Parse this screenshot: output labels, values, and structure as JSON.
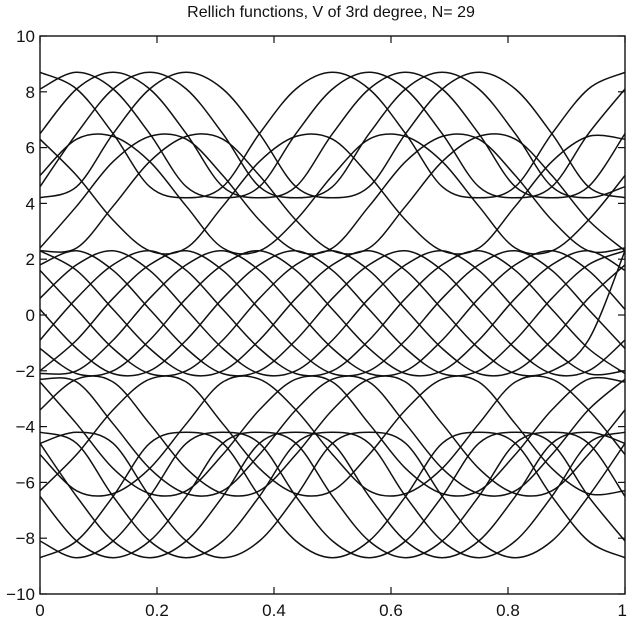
{
  "chart_data": {
    "type": "line",
    "title": "Rellich functions, V of 3rd degree,  N= 29",
    "xlabel": "",
    "ylabel": "",
    "xlim": [
      0,
      1
    ],
    "ylim": [
      -10,
      10
    ],
    "xticks": [
      0,
      0.2,
      0.4,
      0.6,
      0.8,
      1
    ],
    "xtick_labels": [
      "0",
      "0.2",
      "0.4",
      "0.6",
      "0.8",
      "1"
    ],
    "yticks": [
      -10,
      -8,
      -6,
      -4,
      -2,
      0,
      2,
      4,
      6,
      8,
      10
    ],
    "ytick_labels": [
      "−10",
      "−8",
      "−6",
      "−4",
      "−2",
      "0",
      "2",
      "4",
      "6",
      "8",
      "10"
    ],
    "grid": false,
    "line_color": "#111111",
    "num_series": 29,
    "x": [
      0,
      0.0625,
      0.125,
      0.1875,
      0.25,
      0.3125,
      0.375,
      0.4375,
      0.5,
      0.5625,
      0.625,
      0.6875,
      0.75,
      0.8125,
      0.875,
      0.9375,
      1
    ],
    "series": [
      {
        "values": [
          8.7,
          8.1,
          6.5,
          4.6,
          4.2,
          4.6,
          6.5,
          8.1,
          8.7,
          8.1,
          6.5,
          4.6,
          4.2,
          4.6,
          6.5,
          8.1,
          8.7
        ]
      },
      {
        "values": [
          8.1,
          8.7,
          8.1,
          6.5,
          4.6,
          4.2,
          4.6,
          6.5,
          8.1,
          8.7,
          8.1,
          6.5,
          4.6,
          4.2,
          4.6,
          6.5,
          8.1
        ]
      },
      {
        "values": [
          6.5,
          8.1,
          8.7,
          8.1,
          6.5,
          4.6,
          4.2,
          4.6,
          6.5,
          8.1,
          8.7,
          8.1,
          6.5,
          4.6,
          4.2,
          4.6,
          6.5
        ]
      },
      {
        "values": [
          4.6,
          6.5,
          8.1,
          8.7,
          8.1,
          6.5,
          4.6,
          4.2,
          4.6,
          6.5,
          8.1,
          8.7,
          8.1,
          6.5,
          4.6,
          4.2,
          4.6
        ]
      },
      {
        "values": [
          4.2,
          4.6,
          6.5,
          8.1,
          8.7,
          8.1,
          6.5,
          4.6,
          4.2,
          4.6,
          6.5,
          8.1,
          8.7,
          8.1,
          6.5,
          4.6,
          4.2
        ]
      },
      {
        "values": [
          6.3,
          5.0,
          3.4,
          2.3,
          2.4,
          3.9,
          5.5,
          6.4,
          6.3,
          5.0,
          3.4,
          2.3,
          2.4,
          3.9,
          5.5,
          6.4,
          6.3
        ]
      },
      {
        "values": [
          2.4,
          3.9,
          5.5,
          6.4,
          6.3,
          5.0,
          3.4,
          2.3,
          2.4,
          3.9,
          5.5,
          6.4,
          6.3,
          5.0,
          3.4,
          2.3,
          2.4
        ]
      },
      {
        "values": [
          5.0,
          6.3,
          6.4,
          5.5,
          3.9,
          2.4,
          2.3,
          3.4,
          5.0,
          6.3,
          6.4,
          5.5,
          3.9,
          2.4,
          2.3,
          3.4,
          5.0
        ]
      },
      {
        "values": [
          2.3,
          2.4,
          3.9,
          5.5,
          6.4,
          6.3,
          5.0,
          3.4,
          2.3,
          2.4,
          3.9,
          5.5,
          6.4,
          6.3,
          5.0,
          3.4,
          2.3
        ]
      },
      {
        "values": [
          2.3,
          1.6,
          0.2,
          -1.2,
          -2.1,
          -2.0,
          -0.9,
          0.6,
          1.8,
          2.3,
          1.6,
          0.2,
          -1.2,
          -2.1,
          -2.0,
          -0.9,
          2.3
        ]
      },
      {
        "values": [
          -2.1,
          -2.0,
          -0.9,
          0.6,
          1.8,
          2.3,
          1.6,
          0.2,
          -1.2,
          -2.1,
          -2.0,
          -0.9,
          0.6,
          1.8,
          2.3,
          1.6,
          0.2
        ]
      },
      {
        "values": [
          0.6,
          1.8,
          2.3,
          1.6,
          0.2,
          -1.2,
          -2.1,
          -2.0,
          -0.9,
          0.6,
          1.8,
          2.3,
          1.6,
          0.2,
          -1.2,
          -2.1,
          -2.0
        ]
      },
      {
        "values": [
          -1.2,
          -2.1,
          -2.0,
          -0.9,
          0.6,
          1.8,
          2.3,
          1.6,
          0.2,
          -1.2,
          -2.1,
          -2.0,
          -0.9,
          0.6,
          1.8,
          2.3,
          1.6
        ]
      },
      {
        "values": [
          1.6,
          0.2,
          -1.2,
          -2.1,
          -2.0,
          -0.9,
          0.6,
          1.8,
          2.3,
          1.6,
          0.2,
          -1.2,
          -2.1,
          -2.0,
          -0.9,
          0.6,
          1.8
        ]
      },
      {
        "values": [
          -2.0,
          -0.9,
          0.6,
          1.8,
          2.3,
          1.6,
          0.2,
          -1.2,
          -2.1,
          -2.0,
          -0.9,
          0.6,
          1.8,
          2.3,
          1.6,
          0.2,
          -1.2
        ]
      },
      {
        "values": [
          0.2,
          -1.2,
          -2.1,
          -2.0,
          -0.9,
          0.6,
          1.8,
          2.3,
          1.6,
          0.2,
          -1.2,
          -2.1,
          -2.0,
          -0.9,
          0.6,
          1.8,
          2.3
        ]
      },
      {
        "values": [
          -0.9,
          0.6,
          1.8,
          2.3,
          1.6,
          0.2,
          -1.2,
          -2.1,
          -2.0,
          -0.9,
          0.6,
          1.8,
          2.3,
          1.6,
          0.2,
          -1.2,
          -2.1
        ]
      },
      {
        "values": [
          1.8,
          2.3,
          1.6,
          0.2,
          -1.2,
          -2.1,
          -2.0,
          -0.9,
          0.6,
          1.8,
          2.3,
          1.6,
          0.2,
          -1.2,
          -2.1,
          -2.0,
          -0.9
        ]
      },
      {
        "values": [
          -2.3,
          -2.4,
          -3.9,
          -5.5,
          -6.4,
          -6.3,
          -5.0,
          -3.4,
          -2.3,
          -2.4,
          -3.9,
          -5.5,
          -6.4,
          -6.3,
          -5.0,
          -3.4,
          -2.3
        ]
      },
      {
        "values": [
          -5.0,
          -6.3,
          -6.4,
          -5.5,
          -3.9,
          -2.4,
          -2.3,
          -3.4,
          -5.0,
          -6.3,
          -6.4,
          -5.5,
          -3.9,
          -2.4,
          -2.3,
          -3.4,
          -5.0
        ]
      },
      {
        "values": [
          -2.4,
          -3.9,
          -5.5,
          -6.4,
          -6.3,
          -5.0,
          -3.4,
          -2.3,
          -2.4,
          -3.9,
          -5.5,
          -6.4,
          -6.3,
          -5.0,
          -3.4,
          -2.3,
          -2.4
        ]
      },
      {
        "values": [
          -6.3,
          -5.0,
          -3.4,
          -2.3,
          -2.4,
          -3.9,
          -5.5,
          -6.4,
          -6.3,
          -5.0,
          -3.4,
          -2.3,
          -2.4,
          -3.9,
          -5.5,
          -6.4,
          -6.3
        ]
      },
      {
        "values": [
          -3.4,
          -2.3,
          -2.4,
          -3.9,
          -5.5,
          -6.4,
          -6.3,
          -5.0,
          -3.4,
          -2.3,
          -2.4,
          -3.9,
          -5.5,
          -6.4,
          -6.3,
          -5.0,
          -3.4
        ]
      },
      {
        "values": [
          -8.7,
          -8.1,
          -6.5,
          -4.6,
          -4.2,
          -4.6,
          -6.5,
          -8.1,
          -8.7,
          -8.1,
          -6.5,
          -4.6,
          -4.2,
          -4.6,
          -6.5,
          -8.1,
          -8.7
        ]
      },
      {
        "values": [
          -8.1,
          -8.7,
          -8.1,
          -6.5,
          -4.6,
          -4.2,
          -4.6,
          -6.5,
          -8.1,
          -8.7,
          -8.1,
          -6.5,
          -4.6,
          -4.2,
          -4.6,
          -6.5,
          -8.1
        ]
      },
      {
        "values": [
          -6.5,
          -8.1,
          -8.7,
          -8.1,
          -6.5,
          -4.6,
          -4.2,
          -4.6,
          -6.5,
          -8.1,
          -8.7,
          -8.1,
          -6.5,
          -4.6,
          -4.2,
          -4.6,
          -6.5
        ]
      },
      {
        "values": [
          -4.6,
          -6.5,
          -8.1,
          -8.7,
          -8.1,
          -6.5,
          -4.6,
          -4.2,
          -4.6,
          -6.5,
          -8.1,
          -8.7,
          -8.1,
          -6.5,
          -4.6,
          -4.2,
          -4.6
        ]
      },
      {
        "values": [
          -4.2,
          -4.6,
          -6.5,
          -8.1,
          -8.7,
          -8.1,
          -6.5,
          -4.6,
          -4.2,
          -4.6,
          -6.5,
          -8.1,
          -8.7,
          -8.1,
          -6.5,
          -4.6,
          -4.2
        ]
      },
      {
        "values": [
          -4.6,
          -4.2,
          -4.6,
          -6.5,
          -8.1,
          -8.7,
          -8.1,
          -6.5,
          -4.6,
          -4.2,
          -4.6,
          -6.5,
          -8.1,
          -8.7,
          -8.1,
          -6.5,
          -4.6
        ]
      }
    ]
  }
}
